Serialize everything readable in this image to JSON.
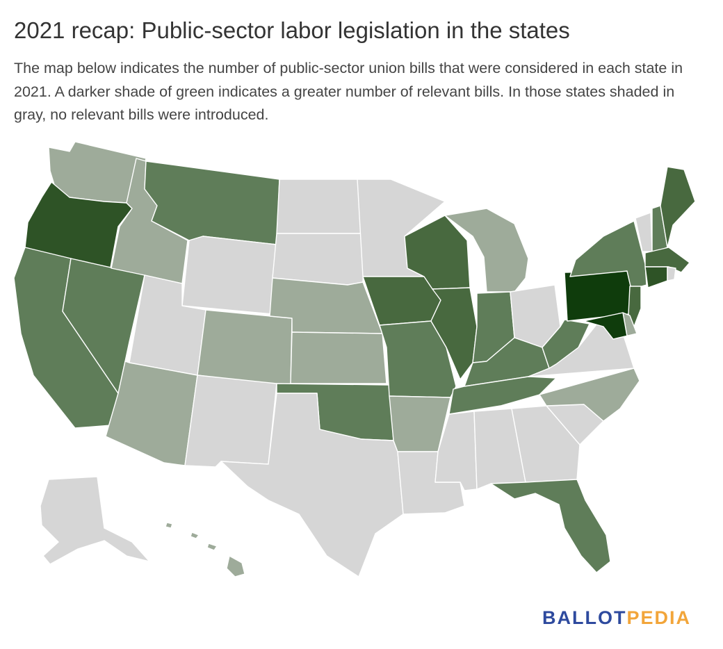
{
  "title": "2021 recap: Public-sector labor legislation in the states",
  "subtitle": "The map below indicates the number of public-sector union bills that were considered in each state in 2021. A darker shade of green indicates a greater number of relevant bills. In those states shaded in gray, no relevant bills were introduced.",
  "logo": {
    "part1": "BALLOT",
    "part2": "PEDIA"
  },
  "colors": {
    "none": "#d6d6d6",
    "level1": "#9eab9a",
    "level2": "#5f7d59",
    "level3": "#48693f",
    "level4": "#2e5326",
    "level5": "#0f3c0c",
    "logo_blue": "#2e4a9e",
    "logo_orange": "#f2a53a"
  },
  "states": {
    "WA": "level1",
    "OR": "level4",
    "CA": "level2",
    "NV": "level2",
    "ID": "level1",
    "MT": "level2",
    "WY": "none",
    "UT": "none",
    "AZ": "level1",
    "CO": "level1",
    "NM": "none",
    "ND": "none",
    "SD": "none",
    "NE": "level1",
    "KS": "level1",
    "OK": "level2",
    "TX": "none",
    "MN": "none",
    "IA": "level3",
    "MO": "level2",
    "AR": "level1",
    "LA": "none",
    "WI": "level3",
    "IL": "level3",
    "MI": "level1",
    "IN": "level2",
    "OH": "none",
    "KY": "level2",
    "TN": "level2",
    "MS": "none",
    "AL": "none",
    "GA": "none",
    "FL": "level2",
    "SC": "none",
    "NC": "level1",
    "VA": "none",
    "WV": "level2",
    "PA": "level5",
    "NY": "level2",
    "VT": "none",
    "NH": "level2",
    "ME": "level3",
    "MA": "level3",
    "CT": "level4",
    "RI": "none",
    "NJ": "level3",
    "DE": "level1",
    "MD": "level5",
    "AK": "none",
    "HI": "level1"
  }
}
